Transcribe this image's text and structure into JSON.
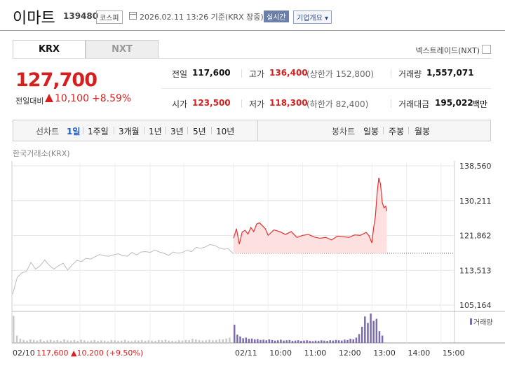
{
  "header": {
    "stock_name": "이마트",
    "stock_code": "139480",
    "market": "코스피",
    "date_basis": "2026.02.11 13:26 기준(KRX 장중)",
    "realtime_label": "실시간",
    "company_info_label": "기업개요 ▾"
  },
  "tabs": [
    {
      "label": "KRX",
      "active": true
    },
    {
      "label": "NXT",
      "active": false
    }
  ],
  "nxt_link": "넥스트레이드(NXT)",
  "quote": {
    "price": "127,700",
    "change_label": "전일대비",
    "change_value": "10,100",
    "change_pct": "+8.59%"
  },
  "info": {
    "prev_close_label": "전일",
    "prev_close": "117,600",
    "high_label": "고가",
    "high": "136,400",
    "upper_limit": "(상한가 152,800)",
    "volume_label": "거래량",
    "volume": "1,557,071",
    "open_label": "시가",
    "open": "123,500",
    "low_label": "저가",
    "low": "118,300",
    "lower_limit": "(하한가 82,400)",
    "amount_label": "거래대금",
    "amount": "195,022",
    "amount_unit": "백만"
  },
  "period_bar": {
    "line_label": "선차트",
    "line_items": [
      "1일",
      "1주일",
      "3개월",
      "1년",
      "3년",
      "5년",
      "10년"
    ],
    "active": "1일",
    "candle_label": "봉차트",
    "candle_items": [
      "일봉",
      "주봉",
      "월봉"
    ]
  },
  "chart_source": "한국거래소(KRX)",
  "chart_data": {
    "type": "line",
    "y_ticks": [
      "138,560",
      "130,211",
      "121,862",
      "113,513",
      "105,164"
    ],
    "ylim": [
      105164,
      138560
    ],
    "x_ticks": [
      "02/11",
      "10:00",
      "11:00",
      "12:00",
      "13:00",
      "14:00",
      "15:00"
    ],
    "prev_day_label": "02/10",
    "prev_day_summary": "117,600 ▲10,200 (+9.50%)",
    "volume_legend": "거래량",
    "reference_price": 117600,
    "prev_day_series": {
      "values": [
        107800,
        111800,
        112900,
        113200,
        115400,
        113800,
        114600,
        116000,
        114700,
        113800,
        114600,
        115200,
        113600,
        114800,
        115900,
        115600,
        116400,
        116200,
        116800,
        117300,
        117000,
        116900,
        117200,
        117500,
        117000,
        116900,
        117800,
        117200,
        117900,
        118000,
        117800,
        118400,
        117900,
        117600,
        117100,
        117900,
        117600,
        117800,
        118300,
        118000,
        119000,
        118800,
        119100,
        119700,
        119500,
        118900,
        118600,
        118700,
        117600
      ]
    },
    "today_series": {
      "times": [
        "09:00",
        "09:05",
        "09:10",
        "09:15",
        "09:20",
        "09:25",
        "09:30",
        "09:35",
        "09:40",
        "09:45",
        "09:50",
        "09:55",
        "10:00",
        "10:10",
        "10:20",
        "10:30",
        "10:40",
        "10:50",
        "11:00",
        "11:10",
        "11:20",
        "11:30",
        "11:40",
        "11:50",
        "12:00",
        "12:10",
        "12:20",
        "12:30",
        "12:40",
        "12:50",
        "12:55",
        "13:00",
        "13:03",
        "13:06",
        "13:09",
        "13:12",
        "13:15",
        "13:18",
        "13:21",
        "13:24",
        "13:26"
      ],
      "values": [
        121200,
        123500,
        119800,
        122700,
        123100,
        122200,
        123800,
        122800,
        124600,
        124900,
        124200,
        123500,
        121900,
        123200,
        122800,
        122100,
        122800,
        121400,
        121900,
        122100,
        121500,
        121200,
        121400,
        120800,
        121700,
        121600,
        121400,
        122000,
        121900,
        122600,
        121800,
        120100,
        123700,
        126300,
        131900,
        135700,
        134200,
        129800,
        128500,
        128900,
        127700
      ]
    },
    "prev_day_volume": [
      92,
      25,
      14,
      10,
      8,
      12,
      10,
      8,
      12,
      7,
      9,
      11,
      8,
      10,
      7,
      12,
      9,
      8,
      10,
      7,
      11,
      9,
      6,
      8,
      10,
      7,
      9,
      8,
      6,
      10,
      9,
      7,
      8,
      11,
      7,
      6,
      9,
      8,
      10,
      7,
      9,
      8,
      7,
      10,
      9,
      11,
      8,
      7,
      6,
      9,
      8,
      10,
      9,
      14,
      12,
      10,
      8,
      9,
      11,
      9,
      10,
      13,
      12,
      15,
      18
    ],
    "today_volume": [
      62,
      28,
      22,
      16,
      18,
      14,
      15,
      12,
      13,
      10,
      11,
      9,
      12,
      10,
      8,
      9,
      11,
      8,
      9,
      10,
      7,
      8,
      9,
      7,
      8,
      9,
      7,
      6,
      8,
      7,
      9,
      8,
      7,
      9,
      8,
      10,
      9,
      8,
      11,
      10,
      14,
      12,
      18,
      30,
      55,
      90,
      68,
      100,
      75,
      82,
      40,
      25
    ]
  }
}
